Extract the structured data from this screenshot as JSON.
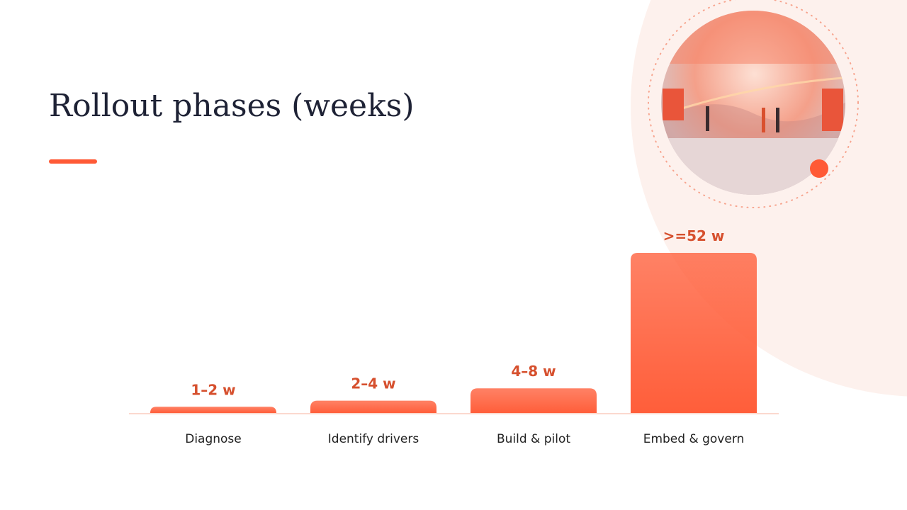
{
  "chart_data": {
    "type": "bar",
    "title": "Rollout phases (weeks)",
    "categories": [
      "Diagnose",
      "Identify drivers",
      "Build & pilot",
      "Embed & govern"
    ],
    "values": [
      2,
      4,
      8,
      52
    ],
    "value_labels": [
      "1–2 w",
      "2–4 w",
      "4–8 w",
      ">=52 w"
    ],
    "color": "#ff5e3a",
    "ylim": [
      0,
      52
    ]
  }
}
